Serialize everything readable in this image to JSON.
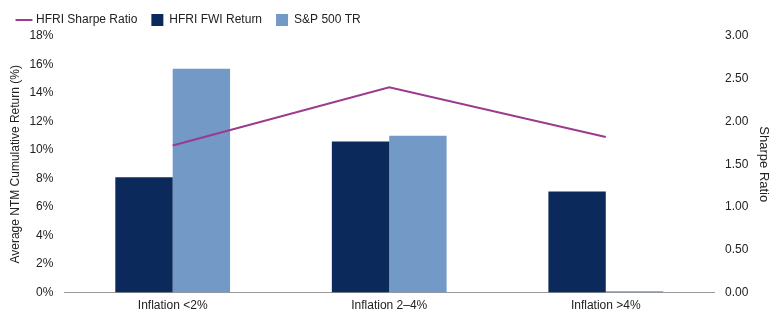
{
  "chart_data": {
    "type": "bar",
    "categories": [
      "Inflation <2%",
      "Inflation 2–4%",
      "Inflation >4%"
    ],
    "series": [
      {
        "name": "HFRI FWI Return",
        "type": "bar",
        "color": "#0b2a5b",
        "values": [
          8.1,
          10.6,
          7.1
        ]
      },
      {
        "name": "S&P 500 TR",
        "type": "bar",
        "color": "#7399c6",
        "values": [
          15.7,
          11.0,
          0.1
        ]
      },
      {
        "name": "HFRI Sharpe Ratio",
        "type": "line",
        "color": "#9b3a8e",
        "axis": "y2",
        "values": [
          1.72,
          2.4,
          1.82
        ]
      }
    ],
    "y_label": "Average NTM Cumulative Return (%)",
    "y2_label": "Sharpe Ratio",
    "ylim": [
      0,
      18
    ],
    "yticks": [
      {
        "value": 0,
        "label": "0%"
      },
      {
        "value": 2,
        "label": "2%"
      },
      {
        "value": 4,
        "label": "4%"
      },
      {
        "value": 6,
        "label": "6%"
      },
      {
        "value": 8,
        "label": "8%"
      },
      {
        "value": 10,
        "label": "10%"
      },
      {
        "value": 12,
        "label": "12%"
      },
      {
        "value": 14,
        "label": "14%"
      },
      {
        "value": 16,
        "label": "16%"
      },
      {
        "value": 18,
        "label": "18%"
      }
    ],
    "y2lim": [
      0,
      3
    ],
    "y2ticks": [
      {
        "value": 0,
        "label": "0.00"
      },
      {
        "value": 0.5,
        "label": "0.50"
      },
      {
        "value": 1,
        "label": "1.00"
      },
      {
        "value": 1.5,
        "label": "1.50"
      },
      {
        "value": 2,
        "label": "2.00"
      },
      {
        "value": 2.5,
        "label": "2.50"
      },
      {
        "value": 3,
        "label": "3.00"
      }
    ],
    "grid": false,
    "legend": "top"
  }
}
